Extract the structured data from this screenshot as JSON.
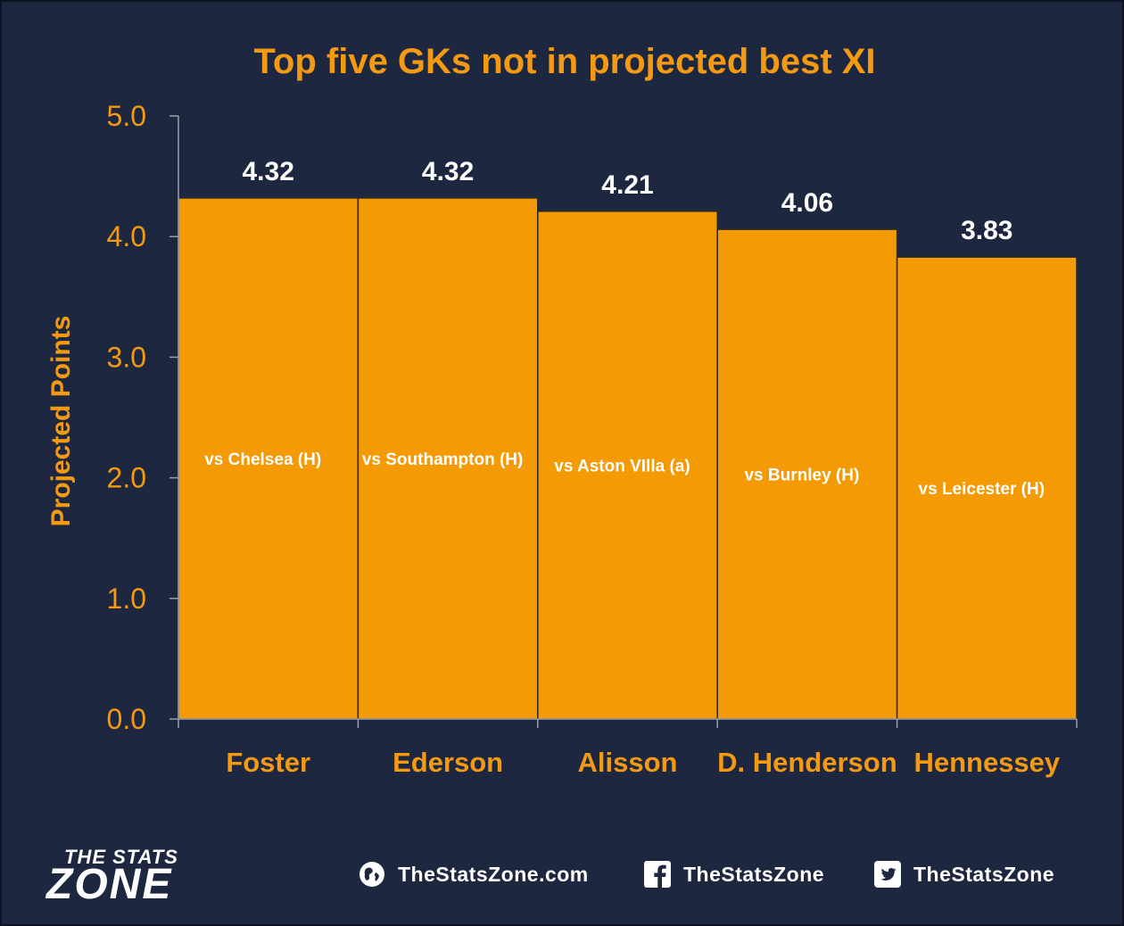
{
  "chart_data": {
    "type": "bar",
    "title": "Top five GKs not in projected best XI",
    "ylabel": "Projected Points",
    "xlabel": "",
    "ylim": [
      0,
      5
    ],
    "yticks": [
      "0.0",
      "1.0",
      "2.0",
      "3.0",
      "4.0",
      "5.0"
    ],
    "categories": [
      "Foster",
      "Ederson",
      "Alisson",
      "D. Henderson",
      "Hennessey"
    ],
    "values": [
      4.32,
      4.32,
      4.21,
      4.06,
      3.83
    ],
    "value_labels": [
      "4.32",
      "4.32",
      "4.21",
      "4.06",
      "3.83"
    ],
    "fixtures": [
      "vs Chelsea (H)",
      "vs Southampton (H)",
      "vs Aston VIlla (a)",
      "vs Burnley (H)",
      "vs Leicester (H)"
    ],
    "grid": false,
    "legend": "none",
    "colors": {
      "bar": "#f39a05",
      "text": "#f39a12",
      "background": "#1d2740"
    }
  },
  "footer": {
    "logo_top": "THE STATS",
    "logo_main": "ZONE",
    "website": "TheStatsZone.com",
    "facebook": "TheStatsZone",
    "twitter": "TheStatsZone",
    "icons": [
      "globe-icon",
      "facebook-icon",
      "twitter-icon"
    ]
  }
}
